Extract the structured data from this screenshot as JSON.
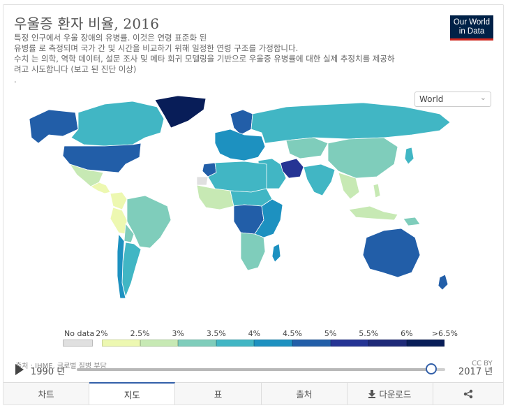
{
  "header": {
    "title": "우울증 환자 비율, 2016",
    "subtitle_lines": [
      "특정 인구에서 우울 장애의 유병률. 이것은 연령 표준화 된",
      "유병률 로 측정되며 국가 간 및 시간을 비교하기 위해 일정한 연령 구조를 가정합니다.",
      "수치 는 의학, 역학 데이터, 설문 조사 및 메타 회귀 모델링을 기반으로 우울증 유병률에 대한 실제 추정치를 제공하",
      "려고 시도합니다 (보고 된 진단 이상)",
      "."
    ]
  },
  "logo": {
    "line1": "Our World",
    "line2": "in Data"
  },
  "region_select": {
    "value": "World"
  },
  "legend": {
    "no_data_label": "No data",
    "no_data_color": "#e0e0e0",
    "tick_labels": [
      "2%",
      "2.5%",
      "3%",
      "3.5%",
      "4%",
      "4.5%",
      "5%",
      "5.5%",
      "6%",
      ">6.5%"
    ],
    "colors": [
      "#edf8b1",
      "#c7e9b4",
      "#7fcdbb",
      "#41b6c4",
      "#1d91c0",
      "#225ea8",
      "#253494",
      "#1e2a78",
      "#081d58"
    ]
  },
  "footer": {
    "source": "출처 : IHME, 글로벌 질병 부담",
    "license": "CC BY",
    "timeline": {
      "start_label": "1990 년",
      "end_label": "2017 년",
      "start_year": 1990,
      "end_year": 2017,
      "selected_year": 2016
    }
  },
  "tabs": [
    {
      "label": "차트"
    },
    {
      "label": "지도"
    },
    {
      "label": "표"
    },
    {
      "label": "출처"
    },
    {
      "label": "다운로드"
    }
  ],
  "map": {
    "regions": [
      {
        "name": "Greenland",
        "color": "#081d58"
      },
      {
        "name": "Canada",
        "color": "#41b6c4"
      },
      {
        "name": "Alaska",
        "color": "#225ea8"
      },
      {
        "name": "United States",
        "color": "#225ea8"
      },
      {
        "name": "Mexico",
        "color": "#c7e9b4"
      },
      {
        "name": "Central America",
        "color": "#edf8b1"
      },
      {
        "name": "Brazil",
        "color": "#7fcdbb"
      },
      {
        "name": "Colombia",
        "color": "#edf8b1"
      },
      {
        "name": "Peru",
        "color": "#edf8b1"
      },
      {
        "name": "Argentina",
        "color": "#41b6c4"
      },
      {
        "name": "Chile",
        "color": "#1d91c0"
      },
      {
        "name": "Bolivia",
        "color": "#7fcdbb"
      },
      {
        "name": "Russia",
        "color": "#41b6c4"
      },
      {
        "name": "Europe",
        "color": "#1d91c0"
      },
      {
        "name": "Scandinavia",
        "color": "#225ea8"
      },
      {
        "name": "China",
        "color": "#7fcdbb"
      },
      {
        "name": "India",
        "color": "#41b6c4"
      },
      {
        "name": "Iran",
        "color": "#253494"
      },
      {
        "name": "Middle East",
        "color": "#41b6c4"
      },
      {
        "name": "Central Asia",
        "color": "#7fcdbb"
      },
      {
        "name": "North Africa",
        "color": "#41b6c4"
      },
      {
        "name": "Sahel",
        "color": "#41b6c4"
      },
      {
        "name": "West Africa",
        "color": "#c7e9b4"
      },
      {
        "name": "Central Africa",
        "color": "#225ea8"
      },
      {
        "name": "East Africa",
        "color": "#1d91c0"
      },
      {
        "name": "Southern Africa",
        "color": "#7fcdbb"
      },
      {
        "name": "Southeast Asia",
        "color": "#c7e9b4"
      },
      {
        "name": "Indonesia",
        "color": "#c7e9b4"
      },
      {
        "name": "Australia",
        "color": "#225ea8"
      },
      {
        "name": "Japan",
        "color": "#41b6c4"
      },
      {
        "name": "New Zealand",
        "color": "#225ea8"
      },
      {
        "name": "Morocco",
        "color": "#225ea8"
      },
      {
        "name": "Madagascar",
        "color": "#1d91c0"
      },
      {
        "name": "Papua New Guinea",
        "color": "#7fcdbb"
      },
      {
        "name": "Philippines",
        "color": "#c7e9b4"
      },
      {
        "name": "Western Sahara",
        "color": "#e0e0e0"
      }
    ]
  }
}
